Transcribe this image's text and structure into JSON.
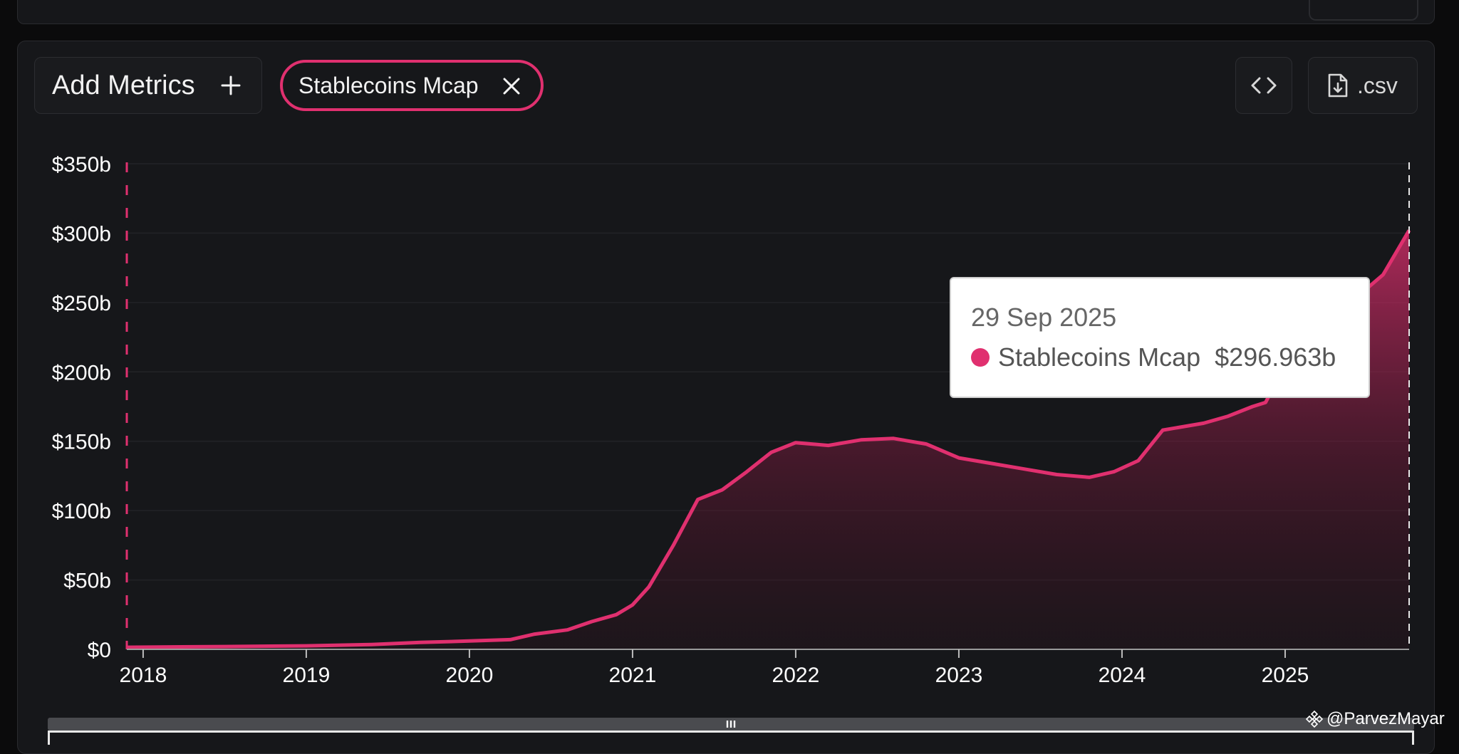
{
  "toolbar": {
    "add_metrics_label": "Add Metrics",
    "metric_chip_label": "Stablecoins Mcap",
    "csv_label": ".csv"
  },
  "tooltip": {
    "date": "29 Sep 2025",
    "series": "Stablecoins Mcap",
    "value": "$296.963b"
  },
  "watermark": "@ParvezMayar",
  "colors": {
    "accent": "#e0306f",
    "panel": "#16171a",
    "background": "#0b0b0c"
  },
  "chart_data": {
    "type": "area",
    "title": "",
    "xlabel": "",
    "ylabel": "",
    "x_ticks": [
      "2018",
      "2019",
      "2020",
      "2021",
      "2022",
      "2023",
      "2024",
      "2025"
    ],
    "y_ticks": [
      "$0",
      "$50b",
      "$100b",
      "$150b",
      "$200b",
      "$250b",
      "$300b",
      "$350b"
    ],
    "ylim": [
      0,
      350
    ],
    "xlim": [
      2017.9,
      2025.76
    ],
    "grid": true,
    "series": [
      {
        "name": "Stablecoins Mcap",
        "x": [
          2017.9,
          2018.5,
          2019.0,
          2019.4,
          2019.7,
          2020.0,
          2020.25,
          2020.4,
          2020.6,
          2020.75,
          2020.9,
          2021.0,
          2021.1,
          2021.25,
          2021.4,
          2021.55,
          2021.7,
          2021.85,
          2022.0,
          2022.2,
          2022.4,
          2022.6,
          2022.8,
          2023.0,
          2023.2,
          2023.4,
          2023.6,
          2023.8,
          2023.95,
          2024.1,
          2024.25,
          2024.5,
          2024.65,
          2024.8,
          2024.88,
          2025.0,
          2025.2,
          2025.4,
          2025.6,
          2025.76
        ],
        "y": [
          1.5,
          2,
          2.5,
          3.5,
          5,
          6,
          7,
          11,
          14,
          20,
          25,
          32,
          45,
          75,
          108,
          115,
          128,
          142,
          149,
          147,
          151,
          152,
          148,
          138,
          134,
          130,
          126,
          124,
          128,
          136,
          158,
          163,
          168,
          175,
          178,
          205,
          230,
          250,
          270,
          302
        ]
      }
    ]
  }
}
